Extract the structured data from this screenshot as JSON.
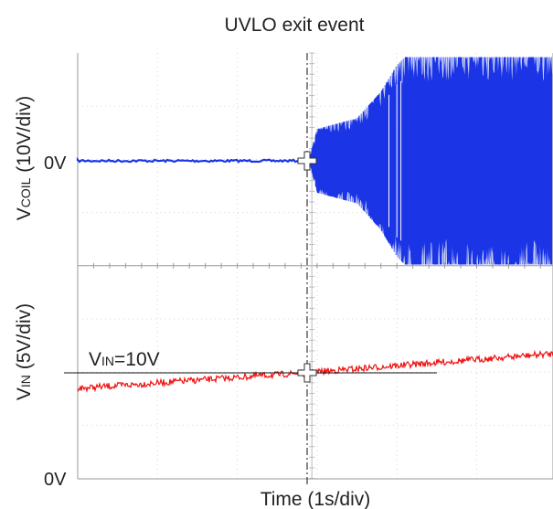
{
  "chart_data": {
    "type": "line",
    "title": "UVLO exit event",
    "xlabel": "Time (1s/div)",
    "x_divisions": 6,
    "y_divisions": 8,
    "trigger_division": 2.9,
    "panels": [
      {
        "name_main": "V",
        "name_sub": "COIL",
        "scale": "(10V/div)",
        "zero_label": "0V",
        "color": "#1a35e6",
        "description": "flat at 0V until the trigger, then switching oscillation whose envelope grows to roughly +/-20V",
        "envelope_points": [
          {
            "x_div": 0.0,
            "amplitude_v": 0.3
          },
          {
            "x_div": 2.9,
            "amplitude_v": 0.4
          },
          {
            "x_div": 3.0,
            "amplitude_v": 6.0
          },
          {
            "x_div": 3.5,
            "amplitude_v": 8.0
          },
          {
            "x_div": 3.8,
            "amplitude_v": 13.0
          },
          {
            "x_div": 4.0,
            "amplitude_v": 18.0
          },
          {
            "x_div": 4.1,
            "amplitude_v": 19.5
          },
          {
            "x_div": 6.0,
            "amplitude_v": 19.5
          }
        ]
      },
      {
        "name_main": "V",
        "name_sub": "IN",
        "scale": "(5V/div)",
        "zero_label": "0V",
        "color": "#ee1111",
        "description": "slow linear ramp",
        "points": [
          {
            "x_div": 0.0,
            "v": 8.5
          },
          {
            "x_div": 2.9,
            "v": 10.0
          },
          {
            "x_div": 6.0,
            "v": 11.8
          }
        ]
      }
    ],
    "threshold": {
      "label_main": "V",
      "label_sub": "IN",
      "label_rest": "=10V",
      "value_v": 10
    }
  }
}
